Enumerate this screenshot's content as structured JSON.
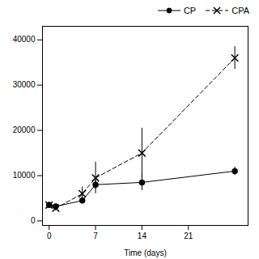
{
  "chart_data": {
    "type": "line",
    "x": [
      0,
      1,
      5,
      7,
      14,
      28
    ],
    "xlabel": "Time (days)",
    "series": [
      {
        "name": "CP",
        "color": "#000000",
        "marker": "circle",
        "line_style": "solid",
        "values": [
          3500,
          3200,
          4500,
          8000,
          8500,
          11000
        ],
        "yerr": [
          600,
          500,
          700,
          1000,
          1800,
          900
        ]
      },
      {
        "name": "CPA",
        "color": "#000000",
        "marker": "x",
        "line_style": "dashed",
        "values": [
          3500,
          2800,
          6000,
          9500,
          15000,
          36000
        ],
        "yerr": [
          600,
          600,
          1500,
          3500,
          5500,
          2500
        ]
      }
    ],
    "xlim": [
      -1,
      30
    ],
    "xticks": [
      0,
      7,
      14,
      21
    ],
    "ylim": [
      -1000,
      43000
    ],
    "yticks": [
      0,
      10000,
      20000,
      30000,
      40000
    ],
    "legend": "upper right",
    "grid": false
  }
}
